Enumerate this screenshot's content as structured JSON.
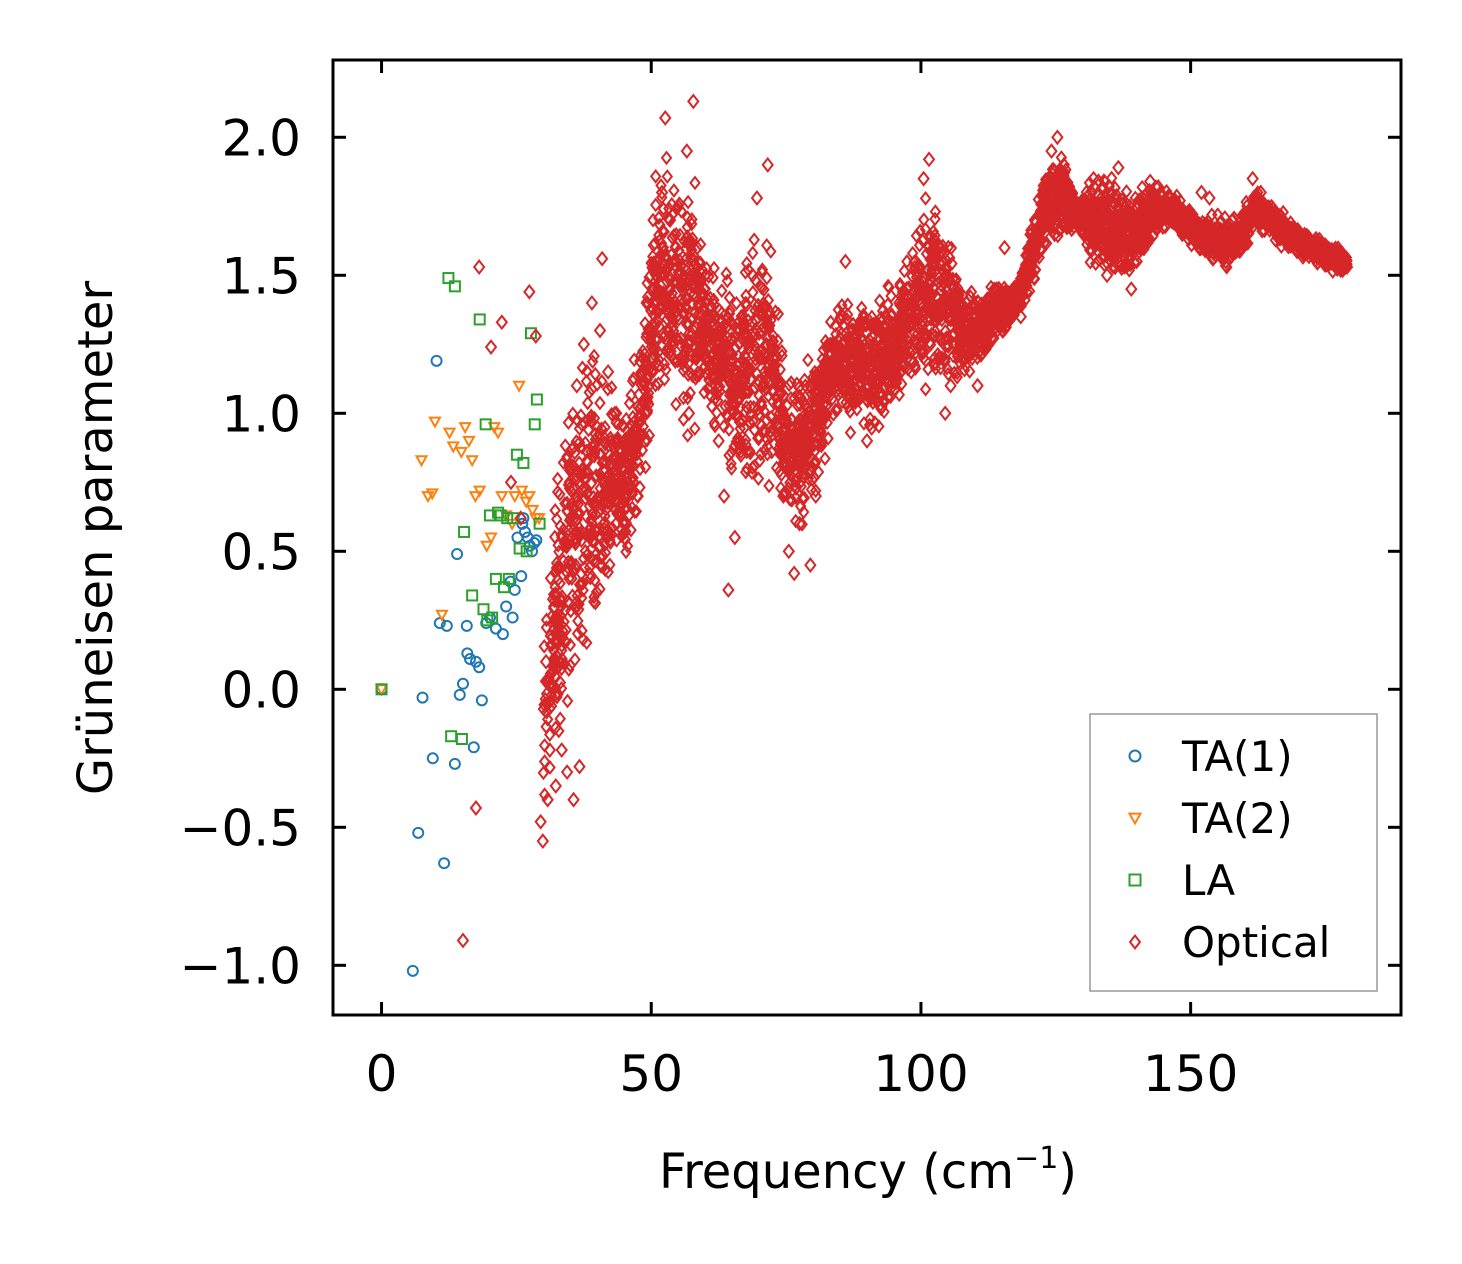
{
  "chart_data": {
    "type": "scatter",
    "title": "",
    "xlabel": "Frequency (cm",
    "xlabel_sup": "−1",
    "xlabel_tail": ")",
    "ylabel": "Grüneisen parameter",
    "xlim": [
      -9,
      189
    ],
    "ylim": [
      -1.18,
      2.28
    ],
    "xticks": [
      0,
      50,
      100,
      150
    ],
    "xtick_labels": [
      "0",
      "50",
      "100",
      "150"
    ],
    "yticks": [
      -1.0,
      -0.5,
      0.0,
      0.5,
      1.0,
      1.5,
      2.0
    ],
    "ytick_labels": [
      "−1.0",
      "−0.5",
      "0.0",
      "0.5",
      "1.0",
      "1.5",
      "2.0"
    ],
    "tick_direction": "in",
    "grid": false,
    "legend_position": "lower-right",
    "series": [
      {
        "name": "TA(1)",
        "marker": "circle",
        "color": "#1f77b4",
        "points": [
          [
            0,
            0.0
          ],
          [
            5.8,
            -1.02
          ],
          [
            6.8,
            -0.52
          ],
          [
            7.6,
            -0.03
          ],
          [
            9.5,
            -0.25
          ],
          [
            10.2,
            1.19
          ],
          [
            10.8,
            0.24
          ],
          [
            11.6,
            -0.63
          ],
          [
            12.1,
            0.23
          ],
          [
            13.6,
            -0.27
          ],
          [
            14.0,
            0.49
          ],
          [
            14.5,
            -0.02
          ],
          [
            15.1,
            0.02
          ],
          [
            15.8,
            0.23
          ],
          [
            15.9,
            0.13
          ],
          [
            16.4,
            0.11
          ],
          [
            17.1,
            -0.21
          ],
          [
            17.5,
            0.1
          ],
          [
            18.1,
            0.08
          ],
          [
            18.6,
            -0.04
          ],
          [
            19.4,
            0.24
          ],
          [
            20.1,
            0.26
          ],
          [
            21.2,
            0.22
          ],
          [
            22.5,
            0.2
          ],
          [
            23.1,
            0.3
          ],
          [
            23.9,
            0.39
          ],
          [
            24.3,
            0.26
          ],
          [
            24.7,
            0.36
          ],
          [
            25.2,
            0.55
          ],
          [
            25.9,
            0.41
          ],
          [
            26.1,
            0.6
          ],
          [
            26.3,
            0.62
          ],
          [
            26.6,
            0.57
          ],
          [
            27.1,
            0.55
          ],
          [
            27.5,
            0.52
          ],
          [
            27.9,
            0.5
          ],
          [
            28.3,
            0.53
          ],
          [
            28.7,
            0.54
          ]
        ]
      },
      {
        "name": "TA(2)",
        "marker": "triangle-down",
        "color": "#ff7f0e",
        "points": [
          [
            0,
            0.0
          ],
          [
            7.4,
            0.83
          ],
          [
            8.6,
            0.7
          ],
          [
            9.4,
            0.71
          ],
          [
            9.9,
            0.97
          ],
          [
            11.2,
            0.27
          ],
          [
            12.6,
            0.93
          ],
          [
            13.3,
            0.88
          ],
          [
            14.8,
            0.86
          ],
          [
            15.5,
            0.95
          ],
          [
            16.2,
            0.9
          ],
          [
            16.8,
            0.83
          ],
          [
            17.4,
            0.7
          ],
          [
            18.2,
            0.72
          ],
          [
            19.5,
            0.52
          ],
          [
            20.3,
            0.55
          ],
          [
            20.9,
            0.95
          ],
          [
            21.6,
            0.93
          ],
          [
            22.3,
            0.7
          ],
          [
            23.1,
            0.63
          ],
          [
            24.2,
            0.6
          ],
          [
            24.7,
            0.7
          ],
          [
            25.5,
            1.1
          ],
          [
            26.0,
            0.72
          ],
          [
            26.8,
            0.68
          ],
          [
            27.4,
            0.7
          ],
          [
            28.0,
            0.65
          ],
          [
            28.6,
            0.62
          ],
          [
            29.2,
            0.62
          ]
        ]
      },
      {
        "name": "LA",
        "marker": "square",
        "color": "#2ca02c",
        "points": [
          [
            0,
            0.0
          ],
          [
            12.4,
            1.49
          ],
          [
            12.9,
            -0.17
          ],
          [
            13.6,
            1.46
          ],
          [
            14.9,
            -0.18
          ],
          [
            15.3,
            0.57
          ],
          [
            16.8,
            0.34
          ],
          [
            18.2,
            1.34
          ],
          [
            18.9,
            0.29
          ],
          [
            19.3,
            0.96
          ],
          [
            19.6,
            0.25
          ],
          [
            20.1,
            0.63
          ],
          [
            20.5,
            0.26
          ],
          [
            21.2,
            0.4
          ],
          [
            21.6,
            0.64
          ],
          [
            22.1,
            0.63
          ],
          [
            22.7,
            0.37
          ],
          [
            23.3,
            0.62
          ],
          [
            23.6,
            0.4
          ],
          [
            24.4,
            0.62
          ],
          [
            25.1,
            0.85
          ],
          [
            25.6,
            0.51
          ],
          [
            26.3,
            0.82
          ],
          [
            26.9,
            0.5
          ],
          [
            27.7,
            1.29
          ],
          [
            28.4,
            0.96
          ],
          [
            28.8,
            1.05
          ],
          [
            29.3,
            0.6
          ]
        ]
      },
      {
        "name": "Optical",
        "marker": "diamond",
        "color": "#d62728",
        "points": [
          [
            15.1,
            -0.91
          ],
          [
            17.5,
            -0.43
          ],
          [
            18.1,
            1.53
          ],
          [
            20.3,
            1.24
          ],
          [
            22.3,
            1.33
          ],
          [
            24.0,
            0.75
          ],
          [
            25.8,
            0.62
          ],
          [
            27.4,
            1.44
          ],
          [
            28.6,
            1.28
          ],
          [
            29.9,
            -0.55
          ],
          [
            29.5,
            -0.48
          ],
          [
            30.8,
            -0.4
          ],
          [
            31.2,
            -0.22
          ],
          [
            32.3,
            -0.35
          ],
          [
            33.4,
            -0.22
          ],
          [
            34.4,
            -0.3
          ],
          [
            35.6,
            -0.4
          ],
          [
            36.7,
            -0.28
          ],
          [
            30.5,
            0.1
          ],
          [
            32.0,
            0.3
          ],
          [
            33.5,
            0.55
          ],
          [
            35.0,
            0.8
          ],
          [
            36.2,
            1.1
          ],
          [
            37.5,
            1.25
          ],
          [
            39.0,
            1.4
          ],
          [
            40.5,
            1.3
          ],
          [
            40.9,
            1.56
          ],
          [
            42.0,
            1.15
          ],
          [
            43.5,
            1.0
          ],
          [
            45.0,
            0.9
          ],
          [
            46.2,
            0.8
          ],
          [
            47.5,
            0.7
          ],
          [
            48.8,
            0.9
          ],
          [
            50.0,
            1.2
          ],
          [
            51.0,
            1.5
          ],
          [
            52.0,
            1.8
          ],
          [
            52.6,
            2.07
          ],
          [
            53.5,
            1.7
          ],
          [
            54.5,
            1.4
          ],
          [
            55.5,
            1.2
          ],
          [
            56.6,
            1.95
          ],
          [
            57.0,
            1.0
          ],
          [
            57.8,
            2.13
          ],
          [
            58.5,
            1.6
          ],
          [
            59.5,
            1.3
          ],
          [
            61.0,
            1.1
          ],
          [
            62.5,
            0.9
          ],
          [
            63.5,
            0.7
          ],
          [
            64.3,
            0.36
          ],
          [
            65.5,
            0.55
          ],
          [
            66.5,
            0.9
          ],
          [
            67.5,
            1.2
          ],
          [
            68.8,
            1.5
          ],
          [
            69.6,
            1.78
          ],
          [
            70.5,
            1.3
          ],
          [
            71.6,
            1.9
          ],
          [
            72.5,
            1.2
          ],
          [
            73.5,
            0.95
          ],
          [
            74.5,
            0.7
          ],
          [
            75.5,
            0.5
          ],
          [
            76.5,
            0.42
          ],
          [
            77.5,
            0.6
          ],
          [
            78.5,
            0.9
          ],
          [
            79.5,
            0.45
          ],
          [
            80.5,
            0.7
          ],
          [
            81.5,
            0.95
          ],
          [
            82.5,
            1.15
          ],
          [
            84.0,
            1.25
          ],
          [
            85.5,
            1.35
          ],
          [
            86.0,
            1.55
          ],
          [
            87.0,
            1.2
          ],
          [
            88.5,
            1.05
          ],
          [
            90.0,
            0.9
          ],
          [
            91.5,
            1.05
          ],
          [
            93.0,
            1.25
          ],
          [
            94.5,
            1.35
          ],
          [
            96.0,
            1.4
          ],
          [
            97.5,
            1.45
          ],
          [
            99.0,
            1.55
          ],
          [
            100.5,
            1.85
          ],
          [
            101.5,
            1.92
          ],
          [
            102.5,
            1.6
          ],
          [
            103.5,
            1.2
          ],
          [
            104.5,
            1.0
          ],
          [
            105.5,
            1.1
          ],
          [
            106.5,
            1.25
          ],
          [
            107.5,
            1.3
          ],
          [
            108.5,
            1.4
          ],
          [
            109.5,
            1.2
          ],
          [
            110.5,
            1.1
          ],
          [
            111.5,
            1.3
          ],
          [
            112.5,
            1.4
          ],
          [
            114.0,
            1.45
          ],
          [
            115.5,
            1.6
          ],
          [
            117.0,
            1.38
          ],
          [
            118.5,
            1.35
          ],
          [
            120.0,
            1.5
          ],
          [
            121.5,
            1.65
          ],
          [
            123.0,
            1.8
          ],
          [
            124.2,
            1.95
          ],
          [
            125.3,
            2.0
          ],
          [
            126.5,
            1.9
          ],
          [
            128.0,
            1.8
          ],
          [
            130.0,
            1.75
          ],
          [
            132.0,
            1.85
          ],
          [
            133.5,
            1.6
          ],
          [
            134.5,
            1.5
          ],
          [
            135.5,
            1.75
          ],
          [
            136.6,
            1.89
          ],
          [
            137.5,
            1.7
          ],
          [
            139.0,
            1.45
          ],
          [
            140.0,
            1.55
          ],
          [
            141.0,
            1.78
          ],
          [
            142.5,
            1.84
          ],
          [
            144.0,
            1.82
          ],
          [
            146.0,
            1.78
          ],
          [
            148.0,
            1.74
          ],
          [
            150.0,
            1.7
          ],
          [
            152.0,
            1.8
          ],
          [
            153.5,
            1.78
          ],
          [
            155.0,
            1.65
          ],
          [
            156.5,
            1.55
          ],
          [
            158.0,
            1.62
          ],
          [
            159.5,
            1.7
          ],
          [
            161.5,
            1.85
          ],
          [
            163.0,
            1.8
          ],
          [
            165.0,
            1.72
          ],
          [
            167.0,
            1.68
          ],
          [
            169.0,
            1.65
          ],
          [
            171.0,
            1.62
          ],
          [
            173.0,
            1.6
          ],
          [
            175.0,
            1.58
          ],
          [
            177.0,
            1.56
          ],
          [
            179.0,
            1.53
          ]
        ]
      }
    ]
  }
}
